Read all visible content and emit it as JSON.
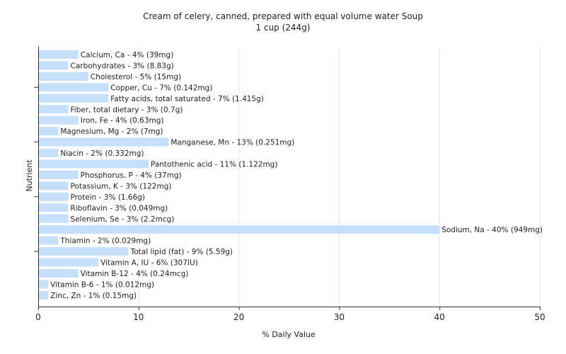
{
  "chart_data": {
    "type": "bar",
    "orientation": "horizontal",
    "title": "Cream of celery, canned, prepared with equal volume water Soup",
    "subtitle": "1 cup (244g)",
    "xlabel": "% Daily Value",
    "ylabel": "Nutrient",
    "xlim": [
      0,
      50
    ],
    "xticks": [
      0,
      10,
      20,
      30,
      40,
      50
    ],
    "grid": true,
    "bar_color": "#c6dffa",
    "categories": [
      "Calcium, Ca",
      "Carbohydrates",
      "Cholesterol",
      "Copper, Cu",
      "Fatty acids, total saturated",
      "Fiber, total dietary",
      "Iron, Fe",
      "Magnesium, Mg",
      "Manganese, Mn",
      "Niacin",
      "Pantothenic acid",
      "Phosphorus, P",
      "Potassium, K",
      "Protein",
      "Riboflavin",
      "Selenium, Se",
      "Sodium, Na",
      "Thiamin",
      "Total lipid (fat)",
      "Vitamin A, IU",
      "Vitamin B-12",
      "Vitamin B-6",
      "Zinc, Zn"
    ],
    "values": [
      4,
      3,
      5,
      7,
      7,
      3,
      4,
      2,
      13,
      2,
      11,
      4,
      3,
      3,
      3,
      3,
      40,
      2,
      9,
      6,
      4,
      1,
      1
    ],
    "labels": [
      "Calcium, Ca - 4% (39mg)",
      "Carbohydrates - 3% (8.83g)",
      "Cholesterol - 5% (15mg)",
      "Copper, Cu - 7% (0.142mg)",
      "Fatty acids, total saturated - 7% (1.415g)",
      "Fiber, total dietary - 3% (0.7g)",
      "Iron, Fe - 4% (0.63mg)",
      "Magnesium, Mg - 2% (7mg)",
      "Manganese, Mn - 13% (0.251mg)",
      "Niacin - 2% (0.332mg)",
      "Pantothenic acid - 11% (1.122mg)",
      "Phosphorus, P - 4% (37mg)",
      "Potassium, K - 3% (122mg)",
      "Protein - 3% (1.66g)",
      "Riboflavin - 3% (0.049mg)",
      "Selenium, Se - 3% (2.2mcg)",
      "Sodium, Na - 40% (949mg)",
      "Thiamin - 2% (0.029mg)",
      "Total lipid (fat) - 9% (5.59g)",
      "Vitamin A, IU - 6% (307IU)",
      "Vitamin B-12 - 4% (0.24mcg)",
      "Vitamin B-6 - 1% (0.012mg)",
      "Zinc, Zn - 1% (0.15mg)"
    ]
  }
}
